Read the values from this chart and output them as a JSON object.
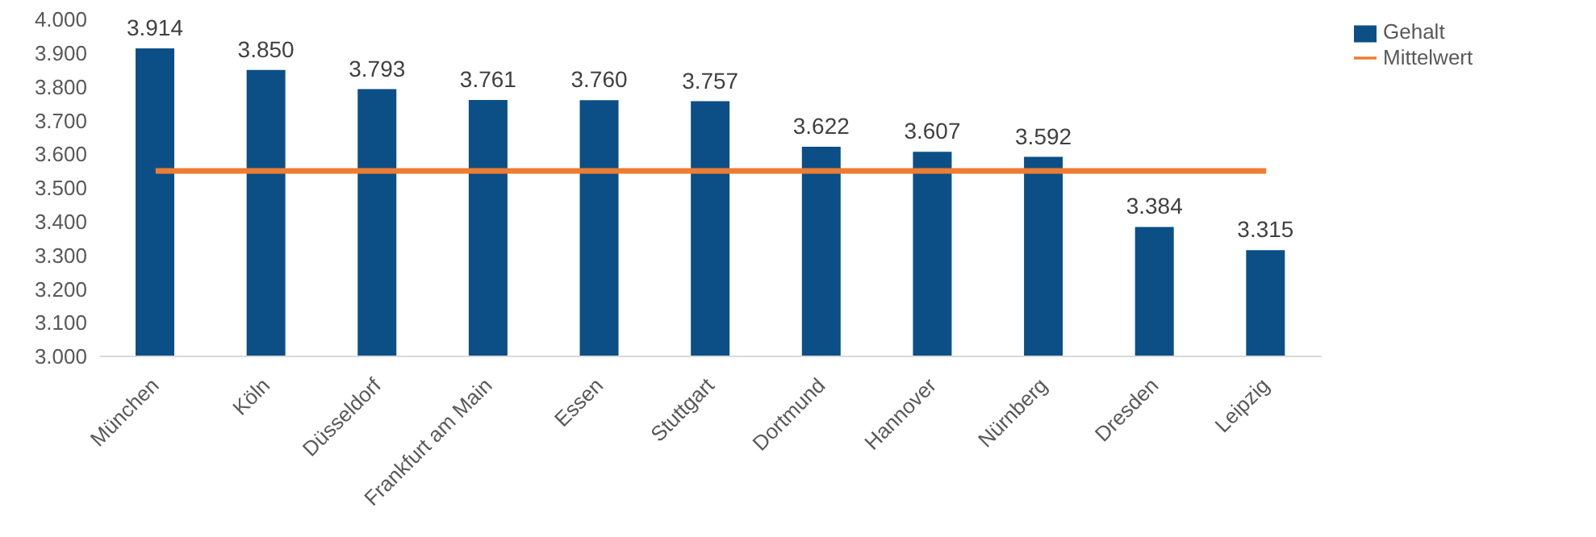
{
  "chart_data": {
    "type": "bar",
    "categories": [
      "München",
      "Köln",
      "Düsseldorf",
      "Frankfurt am Main",
      "Essen",
      "Stuttgart",
      "Dortmund",
      "Hannover",
      "Nürnberg",
      "Dresden",
      "Leipzig"
    ],
    "series": [
      {
        "name": "Gehalt",
        "color": "#0b4f86",
        "values": [
          3914,
          3850,
          3793,
          3761,
          3760,
          3757,
          3622,
          3607,
          3592,
          3384,
          3315
        ],
        "value_labels": [
          "3.914",
          "3.850",
          "3.793",
          "3.761",
          "3.760",
          "3.757",
          "3.622",
          "3.607",
          "3.592",
          "3.384",
          "3.315"
        ]
      },
      {
        "name": "Mittelwert",
        "type": "line",
        "color": "#ed7d31",
        "values": [
          3550,
          3550,
          3550,
          3550,
          3550,
          3550,
          3550,
          3550,
          3550,
          3550,
          3550
        ]
      }
    ],
    "ylim": [
      3000,
      4000
    ],
    "yticks": [
      {
        "value": 3000,
        "label": "3.000"
      },
      {
        "value": 3100,
        "label": "3.100"
      },
      {
        "value": 3200,
        "label": "3.200"
      },
      {
        "value": 3300,
        "label": "3.300"
      },
      {
        "value": 3400,
        "label": "3.400"
      },
      {
        "value": 3500,
        "label": "3.500"
      },
      {
        "value": 3600,
        "label": "3.600"
      },
      {
        "value": 3700,
        "label": "3.700"
      },
      {
        "value": 3800,
        "label": "3.800"
      },
      {
        "value": 3900,
        "label": "3.900"
      },
      {
        "value": 4000,
        "label": "4.000"
      }
    ],
    "grid": false,
    "legend": "top right",
    "marker": "none"
  }
}
